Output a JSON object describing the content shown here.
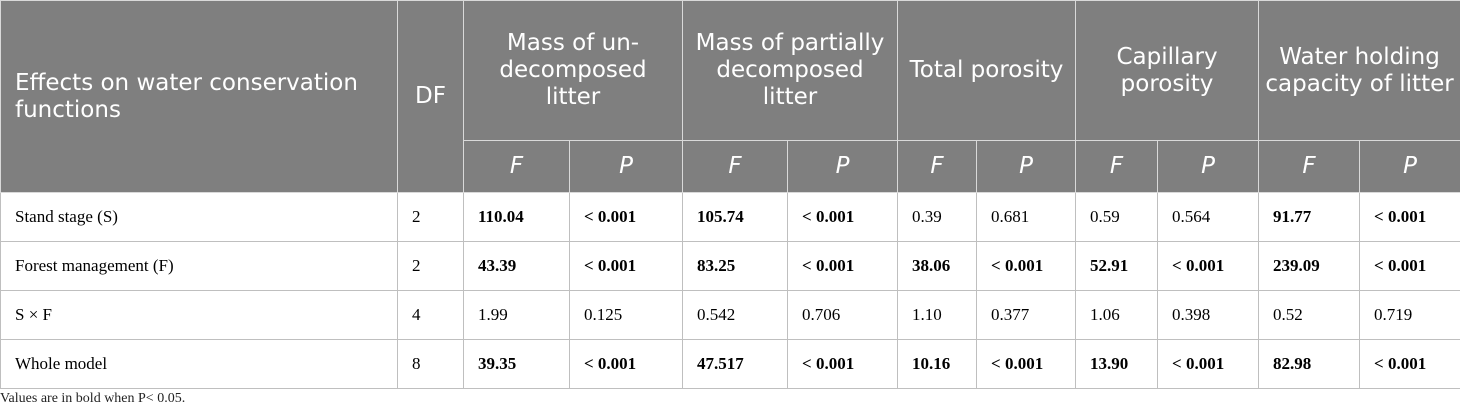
{
  "table": {
    "header": {
      "row_label": "Effects on water conservation functions",
      "df_label": "DF",
      "groups": [
        "Mass of un-decomposed litter",
        "Mass of partially decomposed litter",
        "Total porosity",
        "Capillary porosity",
        "Water holding capacity of litter"
      ],
      "sub": [
        "F",
        "P"
      ]
    },
    "rows": [
      {
        "label": "Stand stage (S)",
        "df": "2",
        "cells": [
          "110.04",
          "< 0.001",
          "105.74",
          "< 0.001",
          "0.39",
          "0.681",
          "0.59",
          "0.564",
          "91.77",
          "< 0.001"
        ],
        "bold": [
          true,
          true,
          true,
          true,
          false,
          false,
          false,
          false,
          true,
          true
        ]
      },
      {
        "label": "Forest management (F)",
        "df": "2",
        "cells": [
          "43.39",
          "< 0.001",
          "83.25",
          "< 0.001",
          "38.06",
          "< 0.001",
          "52.91",
          "< 0.001",
          "239.09",
          "< 0.001"
        ],
        "bold": [
          true,
          true,
          true,
          true,
          true,
          true,
          true,
          true,
          true,
          true
        ]
      },
      {
        "label": "S × F",
        "df": "4",
        "cells": [
          "1.99",
          "0.125",
          "0.542",
          "0.706",
          "1.10",
          "0.377",
          "1.06",
          "0.398",
          "0.52",
          "0.719"
        ],
        "bold": [
          false,
          false,
          false,
          false,
          false,
          false,
          false,
          false,
          false,
          false
        ]
      },
      {
        "label": "Whole model",
        "df": "8",
        "cells": [
          "39.35",
          "< 0.001",
          "47.517",
          "< 0.001",
          "10.16",
          "< 0.001",
          "13.90",
          "< 0.001",
          "82.98",
          "< 0.001"
        ],
        "bold": [
          true,
          true,
          true,
          true,
          true,
          true,
          true,
          true,
          true,
          true
        ]
      }
    ]
  },
  "footnote": "Values are in bold when P< 0.05."
}
